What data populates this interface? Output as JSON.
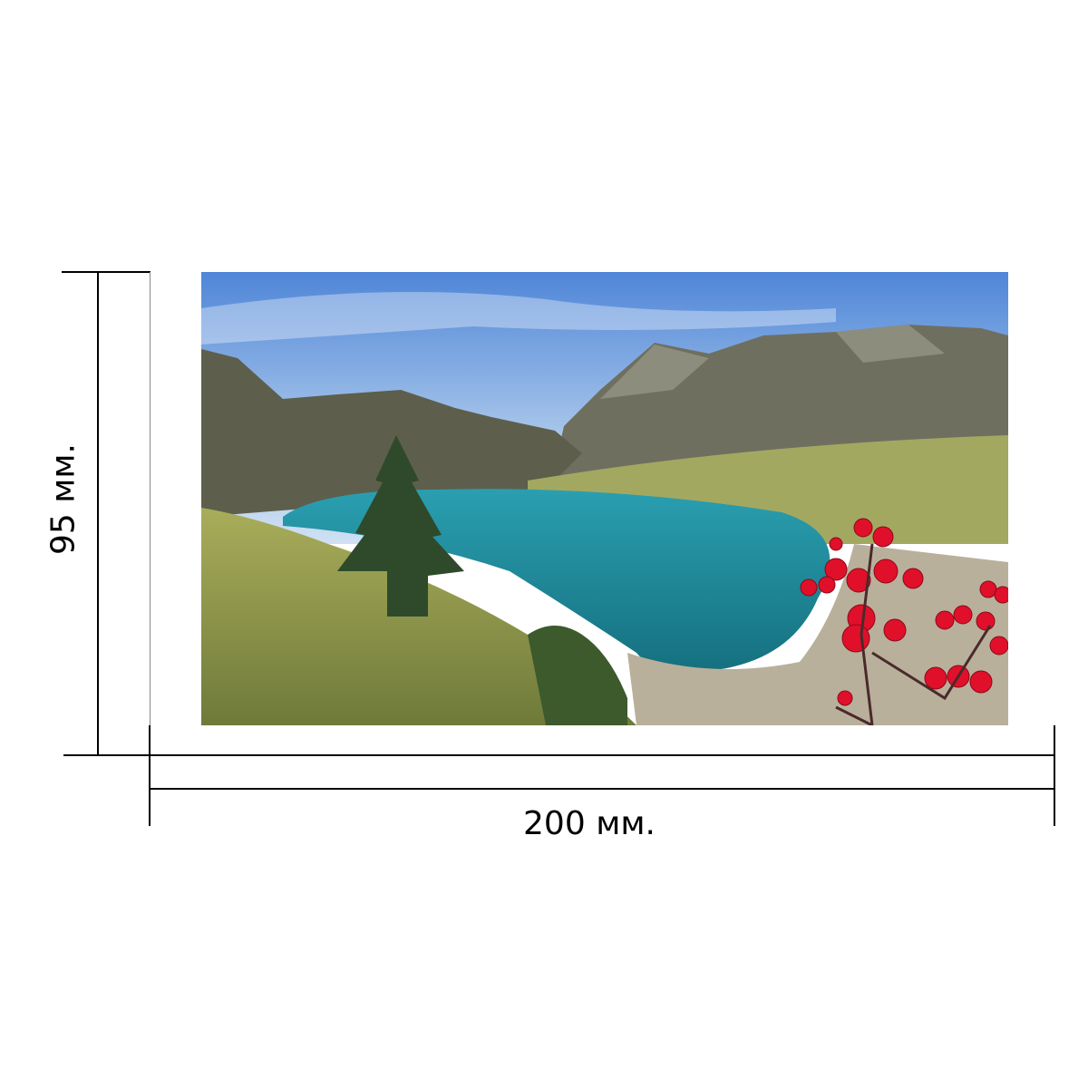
{
  "dimensions": {
    "width_label": "200 мм.",
    "height_label": "95 мм."
  },
  "photo": {
    "subject": "mountain-lake-with-red-berries"
  },
  "colors": {
    "sky": "#5b8fd6",
    "lake": "#1f8a9a",
    "grass": "#8a9a4a",
    "berries": "#e0102a"
  }
}
